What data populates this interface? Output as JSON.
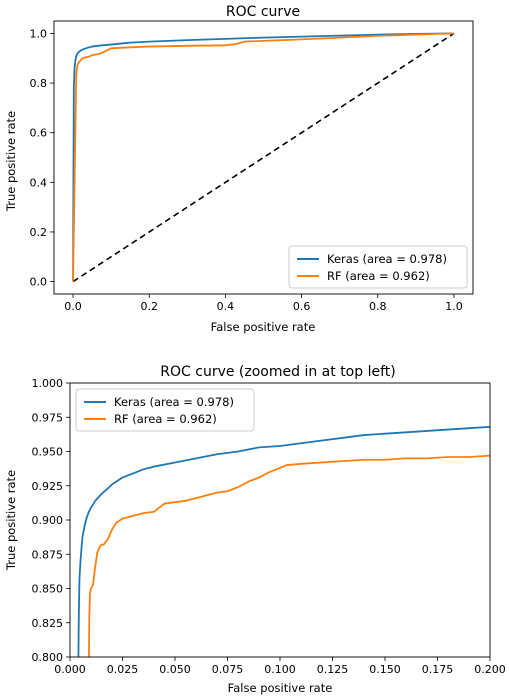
{
  "chart_data": [
    {
      "type": "line",
      "title": "ROC curve",
      "xlabel": "False positive rate",
      "ylabel": "True positive rate",
      "xlim": [
        -0.05,
        1.05
      ],
      "ylim": [
        -0.05,
        1.05
      ],
      "xticks": [
        0.0,
        0.2,
        0.4,
        0.6,
        0.8,
        1.0
      ],
      "xtick_labels": [
        "0.0",
        "0.2",
        "0.4",
        "0.6",
        "0.8",
        "1.0"
      ],
      "yticks": [
        0.0,
        0.2,
        0.4,
        0.6,
        0.8,
        1.0
      ],
      "ytick_labels": [
        "0.0",
        "0.2",
        "0.4",
        "0.6",
        "0.8",
        "1.0"
      ],
      "grid": false,
      "legend": "lower-right",
      "reference_line": {
        "x": [
          0,
          1
        ],
        "y": [
          0,
          1
        ],
        "style": "dashed",
        "color": "#000000"
      },
      "series": [
        {
          "name": "Keras (area = 0.978)",
          "color": "#1f77b4",
          "x": [
            0.0,
            0.002,
            0.004,
            0.006,
            0.008,
            0.01,
            0.015,
            0.02,
            0.025,
            0.03,
            0.04,
            0.05,
            0.07,
            0.1,
            0.15,
            0.2,
            0.3,
            0.4,
            0.5,
            0.6,
            0.7,
            0.8,
            0.9,
            1.0
          ],
          "y": [
            0.0,
            0.78,
            0.86,
            0.89,
            0.905,
            0.915,
            0.925,
            0.931,
            0.935,
            0.938,
            0.943,
            0.947,
            0.951,
            0.955,
            0.963,
            0.967,
            0.973,
            0.978,
            0.983,
            0.987,
            0.991,
            0.995,
            0.998,
            1.0
          ]
        },
        {
          "name": "RF (area = 0.962)",
          "color": "#ff7f0e",
          "x": [
            0.0,
            0.005,
            0.008,
            0.009,
            0.01,
            0.012,
            0.015,
            0.02,
            0.025,
            0.03,
            0.04,
            0.05,
            0.07,
            0.08,
            0.1,
            0.15,
            0.2,
            0.3,
            0.4,
            0.43,
            0.45,
            0.5,
            0.6,
            0.7,
            0.8,
            0.9,
            1.0
          ],
          "y": [
            0.0,
            0.5,
            0.8,
            0.845,
            0.855,
            0.875,
            0.882,
            0.892,
            0.9,
            0.903,
            0.905,
            0.912,
            0.918,
            0.925,
            0.94,
            0.944,
            0.947,
            0.95,
            0.952,
            0.958,
            0.967,
            0.97,
            0.976,
            0.983,
            0.99,
            0.995,
            1.0
          ]
        }
      ]
    },
    {
      "type": "line",
      "title": "ROC curve (zoomed in at top left)",
      "xlabel": "False positive rate",
      "ylabel": "True positive rate",
      "xlim": [
        0.0,
        0.2
      ],
      "ylim": [
        0.8,
        1.0
      ],
      "xticks": [
        0.0,
        0.025,
        0.05,
        0.075,
        0.1,
        0.125,
        0.15,
        0.175,
        0.2
      ],
      "xtick_labels": [
        "0.000",
        "0.025",
        "0.050",
        "0.075",
        "0.100",
        "0.125",
        "0.150",
        "0.175",
        "0.200"
      ],
      "yticks": [
        0.8,
        0.825,
        0.85,
        0.875,
        0.9,
        0.925,
        0.95,
        0.975,
        1.0
      ],
      "ytick_labels": [
        "0.800",
        "0.825",
        "0.850",
        "0.875",
        "0.900",
        "0.925",
        "0.950",
        "0.975",
        "1.000"
      ],
      "grid": false,
      "legend": "top-left",
      "series": [
        {
          "name": "Keras (area = 0.978)",
          "color": "#1f77b4",
          "x": [
            0.004,
            0.0042,
            0.0045,
            0.005,
            0.0055,
            0.006,
            0.007,
            0.008,
            0.009,
            0.01,
            0.012,
            0.015,
            0.018,
            0.02,
            0.023,
            0.025,
            0.03,
            0.035,
            0.04,
            0.05,
            0.06,
            0.07,
            0.08,
            0.09,
            0.1,
            0.11,
            0.12,
            0.13,
            0.14,
            0.15,
            0.16,
            0.17,
            0.18,
            0.19,
            0.2
          ],
          "y": [
            0.8,
            0.83,
            0.857,
            0.87,
            0.88,
            0.888,
            0.896,
            0.902,
            0.906,
            0.909,
            0.914,
            0.919,
            0.923,
            0.926,
            0.929,
            0.931,
            0.934,
            0.937,
            0.939,
            0.942,
            0.945,
            0.948,
            0.95,
            0.953,
            0.954,
            0.956,
            0.958,
            0.96,
            0.962,
            0.963,
            0.964,
            0.965,
            0.966,
            0.967,
            0.968
          ]
        },
        {
          "name": "RF (area = 0.962)",
          "color": "#ff7f0e",
          "x": [
            0.009,
            0.0092,
            0.0095,
            0.01,
            0.011,
            0.012,
            0.013,
            0.014,
            0.015,
            0.016,
            0.018,
            0.02,
            0.022,
            0.025,
            0.03,
            0.035,
            0.04,
            0.045,
            0.05,
            0.055,
            0.06,
            0.065,
            0.07,
            0.075,
            0.08,
            0.085,
            0.09,
            0.095,
            0.1,
            0.103,
            0.11,
            0.12,
            0.13,
            0.14,
            0.15,
            0.16,
            0.17,
            0.18,
            0.19,
            0.2
          ],
          "y": [
            0.8,
            0.83,
            0.846,
            0.85,
            0.853,
            0.866,
            0.876,
            0.88,
            0.882,
            0.882,
            0.886,
            0.893,
            0.898,
            0.901,
            0.903,
            0.905,
            0.906,
            0.912,
            0.913,
            0.914,
            0.916,
            0.918,
            0.92,
            0.921,
            0.924,
            0.928,
            0.931,
            0.935,
            0.938,
            0.94,
            0.941,
            0.942,
            0.943,
            0.944,
            0.944,
            0.945,
            0.945,
            0.946,
            0.946,
            0.947
          ]
        }
      ]
    }
  ]
}
